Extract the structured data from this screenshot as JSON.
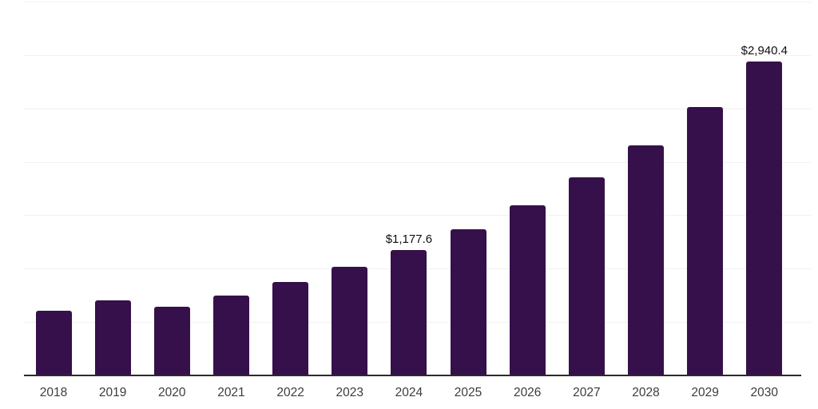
{
  "chart": {
    "background_color": "#ffffff",
    "bar_color": "#36104a",
    "grid_color": "#f1f1f1",
    "axis_color": "#2b2b2b",
    "tick_label_color": "#3c3c3c",
    "value_label_color": "#0f0f0f"
  },
  "chart_data": {
    "type": "bar",
    "title": "",
    "xlabel": "",
    "ylabel": "",
    "categories": [
      "2018",
      "2019",
      "2020",
      "2021",
      "2022",
      "2023",
      "2024",
      "2025",
      "2026",
      "2027",
      "2028",
      "2029",
      "2030"
    ],
    "values": [
      605,
      705,
      645,
      745,
      875,
      1020,
      1177.6,
      1365,
      1590,
      1855,
      2155,
      2510,
      2940.4
    ],
    "data_labels": [
      "",
      "",
      "",
      "",
      "",
      "",
      "$1,177.6",
      "",
      "",
      "",
      "",
      "",
      "$2,940.4"
    ],
    "ylim": [
      0,
      3500
    ],
    "grid_interval": 500,
    "grid": true,
    "y_axis_labels_shown": false,
    "legend_position": "none"
  }
}
